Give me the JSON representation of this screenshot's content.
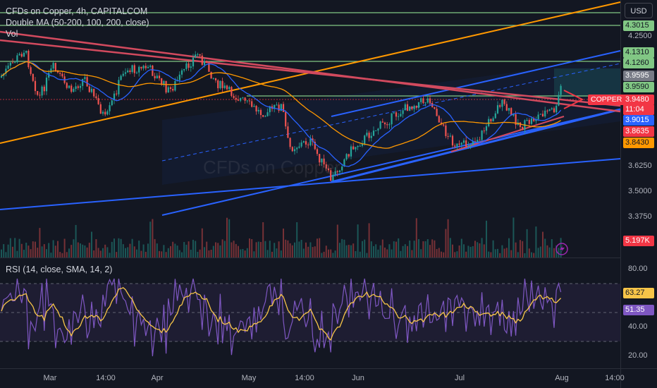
{
  "header": {
    "title": "CFDs on Copper, 4h, CAPITALCOM",
    "indicator": "Double MA (50-200, 100, 200, close)",
    "volume_label": "Vol",
    "rsi_label": "RSI (14, close, SMA, 14, 2)"
  },
  "watermark": "CFDs on Copper",
  "currency_button": "USD",
  "symbol_tag": "COPPER",
  "price_axis": {
    "ticks": [
      "4.2500",
      "3.6250",
      "3.5000",
      "3.3750"
    ],
    "badges": {
      "b1": "4.3015",
      "b2": "4.1310",
      "b3": "4.1260",
      "b4": "3.9595",
      "b5": "3.9590",
      "b6": "3.9480",
      "b7": "11:04",
      "b8": "3.9015",
      "b9": "3.8635",
      "b10": "3.8430",
      "b11": "5.197K"
    }
  },
  "rsi_axis": {
    "ticks": [
      "80.00",
      "40.00",
      "20.00"
    ],
    "badges": {
      "r1": "63.27",
      "r2": "51.35"
    }
  },
  "time_axis": [
    "Mar",
    "14:00",
    "Apr",
    "May",
    "14:00",
    "Jun",
    "Jul",
    "Aug",
    "14:00"
  ],
  "colors": {
    "background": "#131722",
    "up": "#26a69a",
    "down": "#ef5350",
    "blue": "#2962ff",
    "orange": "#ff9800",
    "green": "#81c784",
    "red_line": "#d24a5e",
    "rsi": "#7e57c2",
    "rsi_ma": "#f7c548"
  }
}
